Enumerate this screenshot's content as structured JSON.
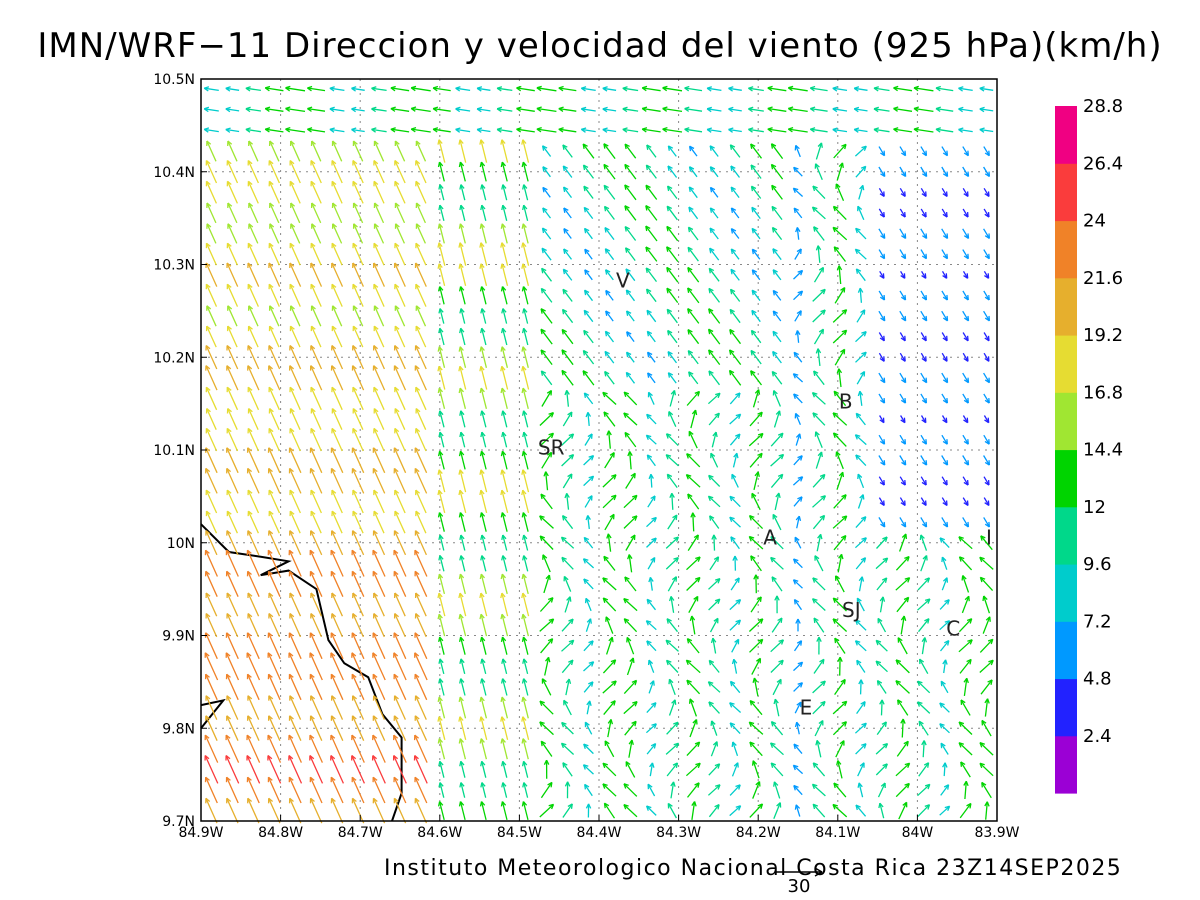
{
  "title": "IMN/WRF−11 Direccion y velocidad del viento (925 hPa)(km/h)",
  "footer": "Instituto Meteorologico Nacional Costa Rica 23Z14SEP2025",
  "map": {
    "lon_range": [
      -84.9,
      -83.9
    ],
    "lat_range": [
      9.7,
      10.5
    ],
    "x_ticks": [
      "84.9W",
      "84.8W",
      "84.7W",
      "84.6W",
      "84.5W",
      "84.4W",
      "84.3W",
      "84.2W",
      "84.1W",
      "84W",
      "83.9W"
    ],
    "y_ticks": [
      "9.7N",
      "9.8N",
      "9.9N",
      "10N",
      "10.1N",
      "10.2N",
      "10.3N",
      "10.4N",
      "10.5N"
    ],
    "grid": true,
    "coastline_color": "#000000",
    "place_labels": [
      {
        "text": "V",
        "lon": -84.37,
        "lat": 10.275
      },
      {
        "text": "B",
        "lon": -84.09,
        "lat": 10.145
      },
      {
        "text": "SR",
        "lon": -84.46,
        "lat": 10.095
      },
      {
        "text": "A",
        "lon": -84.185,
        "lat": 9.998
      },
      {
        "text": "I",
        "lon": -83.91,
        "lat": 9.998
      },
      {
        "text": "SJ",
        "lon": -84.083,
        "lat": 9.92
      },
      {
        "text": "C",
        "lon": -83.955,
        "lat": 9.9
      },
      {
        "text": "E",
        "lon": -84.14,
        "lat": 9.815
      }
    ]
  },
  "reference_vector": {
    "label": "30",
    "units": "km/h"
  },
  "colorbar": {
    "colors": [
      "#9b00d5",
      "#2222ff",
      "#0099ff",
      "#00cccc",
      "#00d88a",
      "#00d400",
      "#a0e632",
      "#e6dc32",
      "#e6af2d",
      "#f08228",
      "#fa3c3c",
      "#f00082"
    ],
    "labels": [
      "2.4",
      "4.8",
      "7.2",
      "9.6",
      "12",
      "14.4",
      "16.8",
      "19.2",
      "21.6",
      "24",
      "26.4",
      "28.8"
    ]
  }
}
